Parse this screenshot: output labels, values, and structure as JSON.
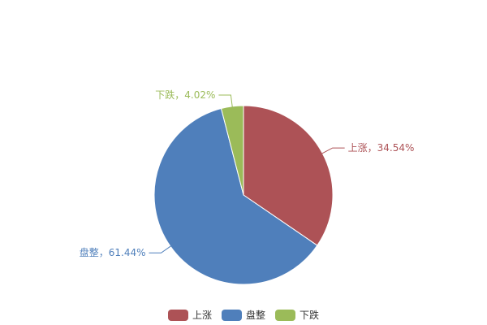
{
  "chart_data": {
    "type": "pie",
    "title": "",
    "categories": [
      "上涨",
      "盘整",
      "下跌"
    ],
    "values": [
      34.54,
      61.44,
      4.02
    ],
    "colors": [
      "#ad5256",
      "#4f7fbb",
      "#9bbb59"
    ],
    "label_separator": "，",
    "unit": "%",
    "start_angle": "top",
    "direction": "clockwise",
    "legend_position": "bottom"
  }
}
